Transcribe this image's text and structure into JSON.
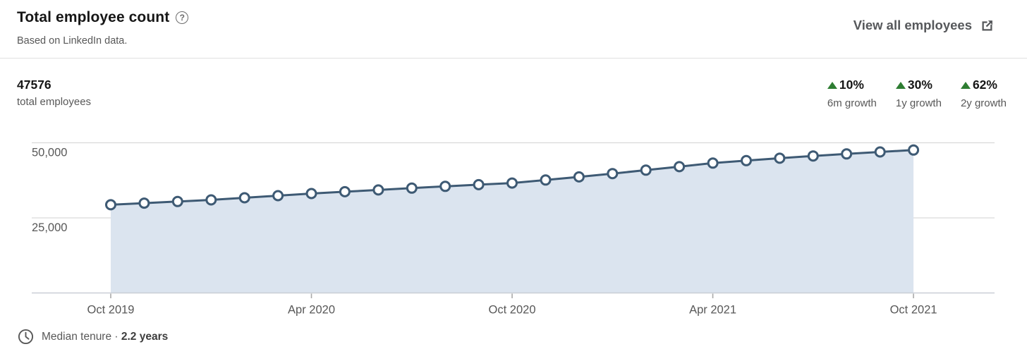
{
  "header": {
    "title": "Total employee count",
    "help_glyph": "?",
    "subtitle": "Based on LinkedIn data.",
    "view_all_label": "View all employees"
  },
  "stats": {
    "total_value": "47576",
    "total_label": "total employees",
    "growth": [
      {
        "value": "10%",
        "label": "6m growth",
        "direction": "up"
      },
      {
        "value": "30%",
        "label": "1y growth",
        "direction": "up"
      },
      {
        "value": "62%",
        "label": "2y growth",
        "direction": "up"
      }
    ],
    "growth_color": "#2e7d32"
  },
  "chart_data": {
    "type": "area",
    "title": "Total employee count",
    "x": [
      "Oct 2019",
      "Nov 2019",
      "Dec 2019",
      "Jan 2020",
      "Feb 2020",
      "Mar 2020",
      "Apr 2020",
      "May 2020",
      "Jun 2020",
      "Jul 2020",
      "Aug 2020",
      "Sep 2020",
      "Oct 2020",
      "Nov 2020",
      "Dec 2020",
      "Jan 2021",
      "Feb 2021",
      "Mar 2021",
      "Apr 2021",
      "May 2021",
      "Jun 2021",
      "Jul 2021",
      "Aug 2021",
      "Sep 2021",
      "Oct 2021"
    ],
    "values": [
      29368,
      29900,
      30450,
      30980,
      31700,
      32400,
      33090,
      33700,
      34300,
      34900,
      35500,
      36050,
      36597,
      37600,
      38650,
      39750,
      40900,
      42050,
      43251,
      44050,
      44850,
      45600,
      46300,
      46950,
      47576
    ],
    "y_ticks": [
      {
        "label": "50,000",
        "value": 50000
      },
      {
        "label": "25,000",
        "value": 25000
      }
    ],
    "x_ticks": [
      {
        "label": "Oct 2019",
        "index": 0
      },
      {
        "label": "Apr 2020",
        "index": 6
      },
      {
        "label": "Oct 2020",
        "index": 12
      },
      {
        "label": "Apr 2021",
        "index": 18
      },
      {
        "label": "Oct 2021",
        "index": 24
      }
    ],
    "ylim": [
      0,
      55000
    ],
    "grid": true,
    "colors": {
      "line": "#3e5a74",
      "fill": "#dbe4ef",
      "point_fill": "#ffffff",
      "grid": "#d9d9d9",
      "axis": "#c9ced6",
      "tick": "#a9a9a9",
      "axis_text": "#585858"
    }
  },
  "footer": {
    "tenure_label": "Median tenure ·",
    "tenure_value": "2.2 years"
  }
}
